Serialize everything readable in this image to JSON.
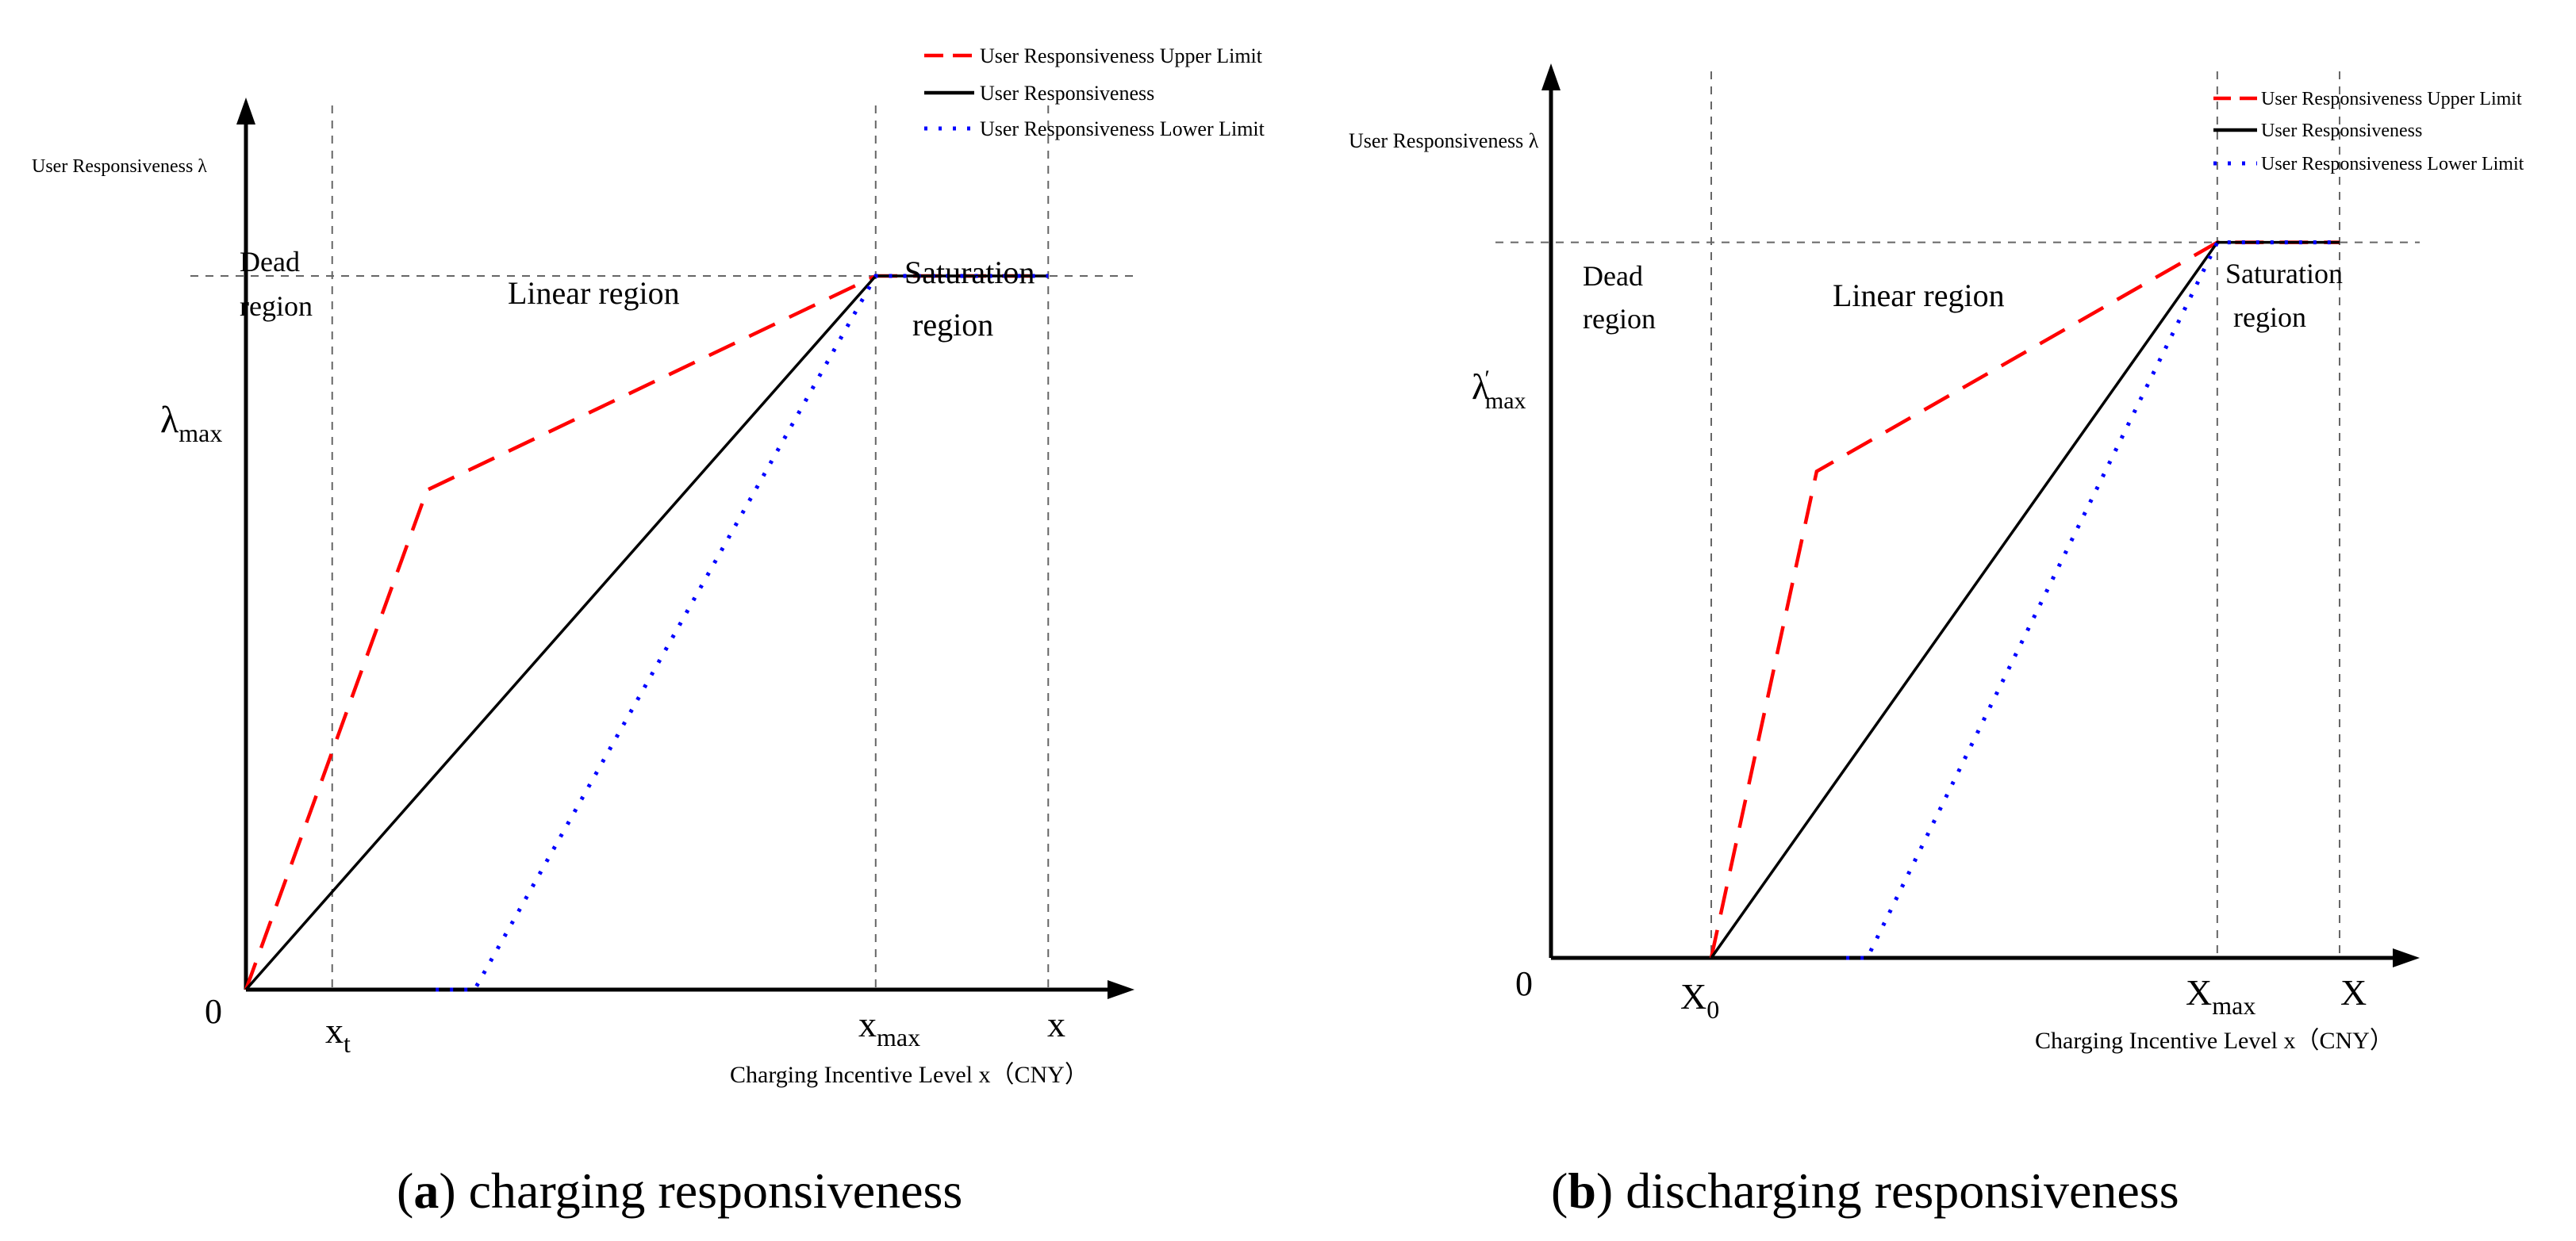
{
  "colors": {
    "upper": "#ff0000",
    "main": "#000000",
    "lower": "#0000ff",
    "grid": "#666666"
  },
  "chart_data": [
    {
      "type": "line",
      "caption": {
        "letter": "a",
        "text": ") charging responsiveness"
      },
      "ylabel": "User Responsiveness λ",
      "xlabel": "Charging Incentive Level x（CNY）",
      "origin_label": "0",
      "y_tick_label": {
        "base": "λ",
        "sub": "max"
      },
      "x_tick_labels": [
        {
          "base": "x",
          "sub": "t"
        },
        {
          "base": "x",
          "sub": "max"
        },
        {
          "base": "x",
          "sub": ""
        }
      ],
      "regions": [
        {
          "lines": [
            "Dead",
            "region"
          ]
        },
        {
          "lines": [
            "Linear region"
          ]
        },
        {
          "lines": [
            "Saturation",
            "region"
          ]
        }
      ],
      "legend": [
        "User Responsiveness  Upper Limit",
        "User Responsiveness",
        "User Responsiveness Lower Limit"
      ],
      "xlim": [
        0,
        10.3
      ],
      "ylim": [
        0,
        12.5
      ],
      "guides": {
        "xt": 1,
        "xmax": 7.3,
        "x": 9.3,
        "lambda_max": 10
      },
      "series": [
        {
          "name": "User Responsiveness  Upper Limit",
          "x": [
            0,
            2.1,
            7.3,
            9.3
          ],
          "y": [
            0,
            7,
            10,
            10
          ]
        },
        {
          "name": "User Responsiveness",
          "x": [
            0,
            7.3,
            9.3
          ],
          "y": [
            0,
            10,
            10
          ]
        },
        {
          "name": "User Responsiveness Lower Limit",
          "x": [
            2.2,
            2.65,
            7.3,
            9.3
          ],
          "y": [
            0,
            0,
            10,
            10
          ]
        }
      ]
    },
    {
      "type": "line",
      "caption": {
        "letter": "b",
        "text": ") discharging responsiveness"
      },
      "ylabel": "User Responsiveness λ",
      "xlabel": "Charging Incentive Level x（CNY）",
      "origin_label": "0",
      "y_tick_label": {
        "base": "λ",
        "sub": "max",
        "prime": "′"
      },
      "x_tick_labels": [
        {
          "base": "X",
          "sub": "0"
        },
        {
          "base": "X",
          "sub": "max"
        },
        {
          "base": "X",
          "sub": ""
        }
      ],
      "regions": [
        {
          "lines": [
            "Dead",
            "region"
          ]
        },
        {
          "lines": [
            "Linear region"
          ]
        },
        {
          "lines": [
            "Saturation",
            "region"
          ]
        }
      ],
      "legend": [
        "User Responsiveness  Upper Limit",
        "User Responsiveness",
        "User Responsiveness Lower Limit"
      ],
      "xlim": [
        0,
        10.3
      ],
      "ylim": [
        0,
        12.5
      ],
      "guides": {
        "x0": 1.9,
        "xmax": 7.9,
        "x": 9.35,
        "lambda_max": 10
      },
      "series": [
        {
          "name": "User Responsiveness  Upper Limit",
          "x": [
            1.9,
            3.15,
            7.9,
            9.35
          ],
          "y": [
            0,
            6.8,
            10,
            10
          ]
        },
        {
          "name": "User Responsiveness",
          "x": [
            1.9,
            7.9,
            9.35
          ],
          "y": [
            0,
            10,
            10
          ]
        },
        {
          "name": "User Responsiveness Lower Limit",
          "x": [
            3.5,
            3.75,
            7.9,
            9.35
          ],
          "y": [
            0,
            0,
            10,
            10
          ]
        }
      ]
    }
  ]
}
